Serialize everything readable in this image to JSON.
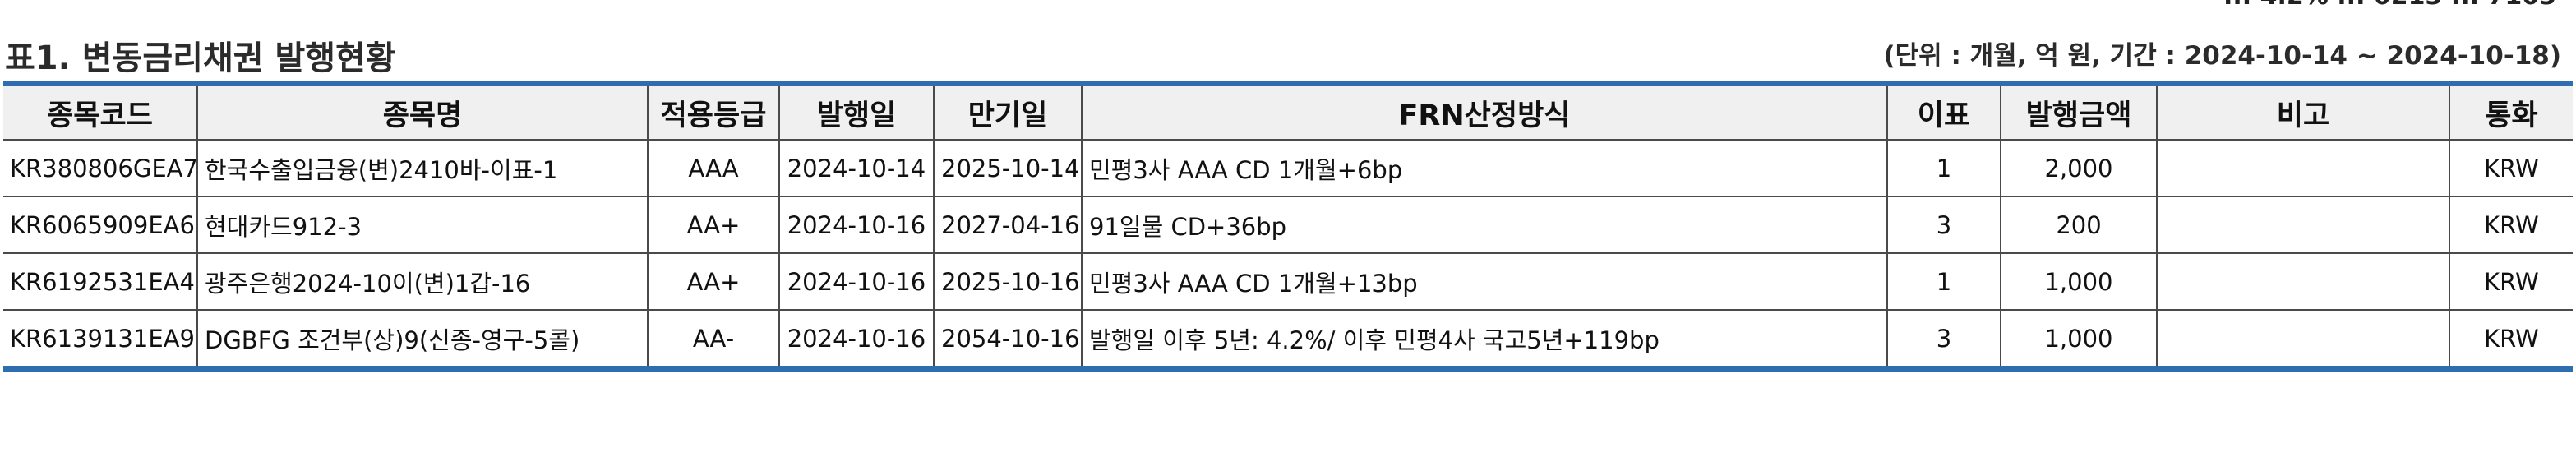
{
  "header": {
    "top_clip_text": "... 4.2% ... 0213 ... 7103",
    "title": "표1. 변동금리채권 발행현황",
    "unit_text": "(단위 : 개월, 억 원, 기간 : 2024-10-14 ~ 2024-10-18)"
  },
  "table": {
    "columns": [
      "종목코드",
      "종목명",
      "적용등급",
      "발행일",
      "만기일",
      "FRN산정방식",
      "이표",
      "발행금액",
      "비고",
      "통화"
    ],
    "rows": [
      [
        "KR380806GEA7",
        "한국수출입금융(변)2410바-이표-1",
        "AAA",
        "2024-10-14",
        "2025-10-14",
        "민평3사 AAA CD 1개월+6bp",
        "1",
        "2,000",
        "",
        "KRW"
      ],
      [
        "KR6065909EA6",
        "현대카드912-3",
        "AA+",
        "2024-10-16",
        "2027-04-16",
        "91일물 CD+36bp",
        "3",
        "200",
        "",
        "KRW"
      ],
      [
        "KR6192531EA4",
        "광주은행2024-10이(변)1갑-16",
        "AA+",
        "2024-10-16",
        "2025-10-16",
        "민평3사 AAA CD 1개월+13bp",
        "1",
        "1,000",
        "",
        "KRW"
      ],
      [
        "KR6139131EA9",
        "DGBFG 조건부(상)9(신종-영구-5콜)",
        "AA-",
        "2024-10-16",
        "2054-10-16",
        "발행일 이후 5년: 4.2%/ 이후 민평4사 국고5년+119bp",
        "3",
        "1,000",
        "",
        "KRW"
      ]
    ]
  },
  "colors": {
    "rule_blue": "#2e6db0",
    "header_bg": "#f0f0f0"
  }
}
